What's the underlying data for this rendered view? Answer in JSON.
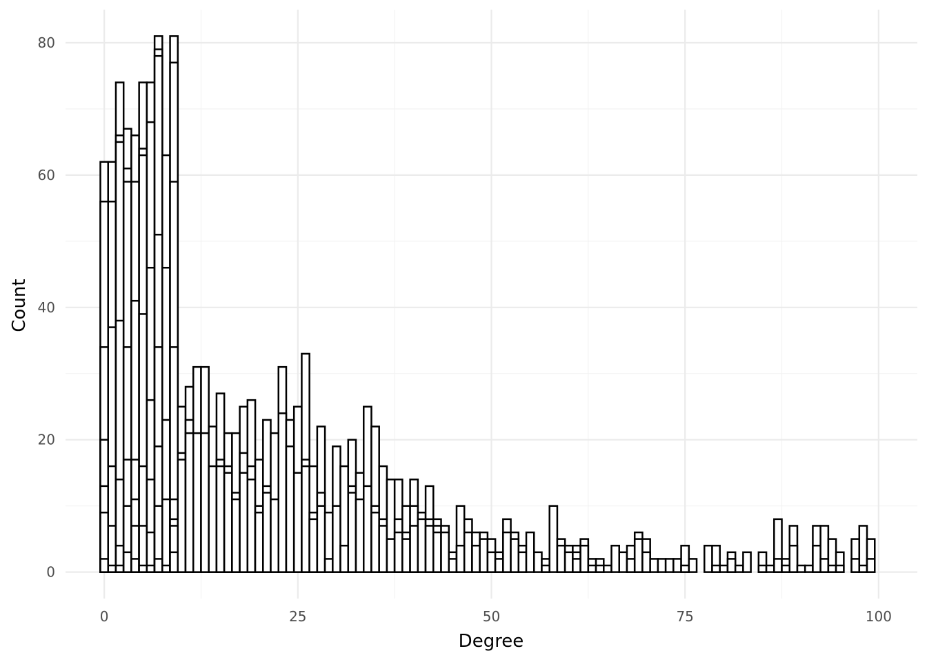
{
  "chart_data": {
    "type": "bar",
    "xlabel": "Degree",
    "ylabel": "Count",
    "xlim": [
      -5,
      105
    ],
    "ylim": [
      -4,
      85
    ],
    "x_ticks": [
      0,
      25,
      50,
      75,
      100
    ],
    "x_tick_labels": [
      "0",
      "25",
      "50",
      "75",
      "100"
    ],
    "y_ticks": [
      0,
      20,
      40,
      60,
      80
    ],
    "y_tick_labels": [
      "0",
      "20",
      "40",
      "60",
      "80"
    ],
    "y_minor_ticks": [
      10,
      30,
      50,
      70
    ],
    "x_minor_ticks": [
      12.5,
      37.5,
      62.5,
      87.5
    ],
    "bin_width": 1,
    "grid": true,
    "colors": {
      "fill": "#ffffff",
      "stroke": "#000000",
      "grid": "#ebebeb"
    },
    "bars": [
      {
        "x": 0,
        "levels": [
          2,
          9,
          13,
          20,
          34,
          56,
          62
        ]
      },
      {
        "x": 1,
        "levels": [
          1,
          7,
          16,
          37,
          56,
          62
        ]
      },
      {
        "x": 2,
        "levels": [
          1,
          4,
          14,
          38,
          65,
          66,
          74
        ]
      },
      {
        "x": 3,
        "levels": [
          3,
          10,
          17,
          34,
          59,
          61,
          67
        ]
      },
      {
        "x": 4,
        "levels": [
          2,
          7,
          11,
          17,
          41,
          59,
          66
        ]
      },
      {
        "x": 5,
        "levels": [
          1,
          7,
          16,
          39,
          63,
          64,
          74
        ]
      },
      {
        "x": 6,
        "levels": [
          1,
          6,
          14,
          26,
          46,
          68,
          74
        ]
      },
      {
        "x": 7,
        "levels": [
          2,
          10,
          19,
          34,
          51,
          78,
          79,
          81
        ]
      },
      {
        "x": 8,
        "levels": [
          1,
          11,
          23,
          46,
          63
        ]
      },
      {
        "x": 9,
        "levels": [
          3,
          7,
          8,
          11,
          34,
          59,
          77,
          81
        ]
      },
      {
        "x": 10,
        "levels": [
          17,
          18,
          25
        ]
      },
      {
        "x": 11,
        "levels": [
          21,
          23,
          28
        ]
      },
      {
        "x": 12,
        "levels": [
          21,
          31
        ]
      },
      {
        "x": 13,
        "levels": [
          21,
          31
        ]
      },
      {
        "x": 14,
        "levels": [
          16,
          22
        ]
      },
      {
        "x": 15,
        "levels": [
          16,
          17,
          27
        ]
      },
      {
        "x": 16,
        "levels": [
          15,
          16,
          21
        ]
      },
      {
        "x": 17,
        "levels": [
          11,
          12,
          21
        ]
      },
      {
        "x": 18,
        "levels": [
          15,
          18,
          25
        ]
      },
      {
        "x": 19,
        "levels": [
          14,
          16,
          26
        ]
      },
      {
        "x": 20,
        "levels": [
          9,
          10,
          17
        ]
      },
      {
        "x": 21,
        "levels": [
          12,
          13,
          23
        ]
      },
      {
        "x": 22,
        "levels": [
          11,
          21
        ]
      },
      {
        "x": 23,
        "levels": [
          24,
          31
        ]
      },
      {
        "x": 24,
        "levels": [
          19,
          23
        ]
      },
      {
        "x": 25,
        "levels": [
          15,
          25
        ]
      },
      {
        "x": 26,
        "levels": [
          16,
          17,
          33
        ]
      },
      {
        "x": 27,
        "levels": [
          8,
          9,
          16
        ]
      },
      {
        "x": 28,
        "levels": [
          10,
          12,
          22
        ]
      },
      {
        "x": 29,
        "levels": [
          2,
          9
        ]
      },
      {
        "x": 30,
        "levels": [
          10,
          19
        ]
      },
      {
        "x": 31,
        "levels": [
          4,
          16
        ]
      },
      {
        "x": 32,
        "levels": [
          12,
          13,
          20
        ]
      },
      {
        "x": 33,
        "levels": [
          11,
          15
        ]
      },
      {
        "x": 34,
        "levels": [
          13,
          25
        ]
      },
      {
        "x": 35,
        "levels": [
          9,
          10,
          22
        ]
      },
      {
        "x": 36,
        "levels": [
          7,
          8,
          16
        ]
      },
      {
        "x": 37,
        "levels": [
          5,
          14
        ]
      },
      {
        "x": 38,
        "levels": [
          6,
          8,
          14
        ]
      },
      {
        "x": 39,
        "levels": [
          5,
          6,
          10
        ]
      },
      {
        "x": 40,
        "levels": [
          7,
          10,
          14
        ]
      },
      {
        "x": 41,
        "levels": [
          8,
          9
        ]
      },
      {
        "x": 42,
        "levels": [
          7,
          8,
          13
        ]
      },
      {
        "x": 43,
        "levels": [
          6,
          7,
          8
        ]
      },
      {
        "x": 44,
        "levels": [
          6,
          7
        ]
      },
      {
        "x": 45,
        "levels": [
          2,
          3
        ]
      },
      {
        "x": 46,
        "levels": [
          4,
          10
        ]
      },
      {
        "x": 47,
        "levels": [
          6,
          8
        ]
      },
      {
        "x": 48,
        "levels": [
          4,
          6
        ]
      },
      {
        "x": 49,
        "levels": [
          5,
          6
        ]
      },
      {
        "x": 50,
        "levels": [
          3,
          5
        ]
      },
      {
        "x": 51,
        "levels": [
          2,
          3
        ]
      },
      {
        "x": 52,
        "levels": [
          6,
          8
        ]
      },
      {
        "x": 53,
        "levels": [
          5,
          6
        ]
      },
      {
        "x": 54,
        "levels": [
          3,
          4
        ]
      },
      {
        "x": 55,
        "levels": [
          6
        ]
      },
      {
        "x": 56,
        "levels": [
          3
        ]
      },
      {
        "x": 57,
        "levels": [
          1,
          2
        ]
      },
      {
        "x": 58,
        "levels": [
          10
        ]
      },
      {
        "x": 59,
        "levels": [
          4,
          5
        ]
      },
      {
        "x": 60,
        "levels": [
          3,
          4
        ]
      },
      {
        "x": 61,
        "levels": [
          2,
          3,
          4
        ]
      },
      {
        "x": 62,
        "levels": [
          4,
          5
        ]
      },
      {
        "x": 63,
        "levels": [
          1,
          2
        ]
      },
      {
        "x": 64,
        "levels": [
          1,
          2
        ]
      },
      {
        "x": 65,
        "levels": [
          1
        ]
      },
      {
        "x": 66,
        "levels": [
          4
        ]
      },
      {
        "x": 67,
        "levels": [
          3
        ]
      },
      {
        "x": 68,
        "levels": [
          2,
          4
        ]
      },
      {
        "x": 69,
        "levels": [
          5,
          6
        ]
      },
      {
        "x": 70,
        "levels": [
          3,
          5
        ]
      },
      {
        "x": 71,
        "levels": [
          2
        ]
      },
      {
        "x": 72,
        "levels": [
          2
        ]
      },
      {
        "x": 73,
        "levels": [
          2
        ]
      },
      {
        "x": 74,
        "levels": [
          2
        ]
      },
      {
        "x": 75,
        "levels": [
          1,
          4
        ]
      },
      {
        "x": 76,
        "levels": [
          2
        ]
      },
      {
        "x": 78,
        "levels": [
          4
        ]
      },
      {
        "x": 79,
        "levels": [
          1,
          4
        ]
      },
      {
        "x": 80,
        "levels": [
          1
        ]
      },
      {
        "x": 81,
        "levels": [
          2,
          3
        ]
      },
      {
        "x": 82,
        "levels": [
          1
        ]
      },
      {
        "x": 83,
        "levels": [
          3
        ]
      },
      {
        "x": 85,
        "levels": [
          1,
          3
        ]
      },
      {
        "x": 86,
        "levels": [
          1
        ]
      },
      {
        "x": 87,
        "levels": [
          2,
          8
        ]
      },
      {
        "x": 88,
        "levels": [
          1,
          2
        ]
      },
      {
        "x": 89,
        "levels": [
          4,
          7
        ]
      },
      {
        "x": 90,
        "levels": [
          1
        ]
      },
      {
        "x": 91,
        "levels": [
          1
        ]
      },
      {
        "x": 92,
        "levels": [
          4,
          7
        ]
      },
      {
        "x": 93,
        "levels": [
          2,
          7
        ]
      },
      {
        "x": 94,
        "levels": [
          1,
          5
        ]
      },
      {
        "x": 95,
        "levels": [
          1,
          3
        ]
      },
      {
        "x": 97,
        "levels": [
          2,
          5
        ]
      },
      {
        "x": 98,
        "levels": [
          1,
          7
        ]
      },
      {
        "x": 99,
        "levels": [
          2,
          5
        ]
      }
    ]
  }
}
